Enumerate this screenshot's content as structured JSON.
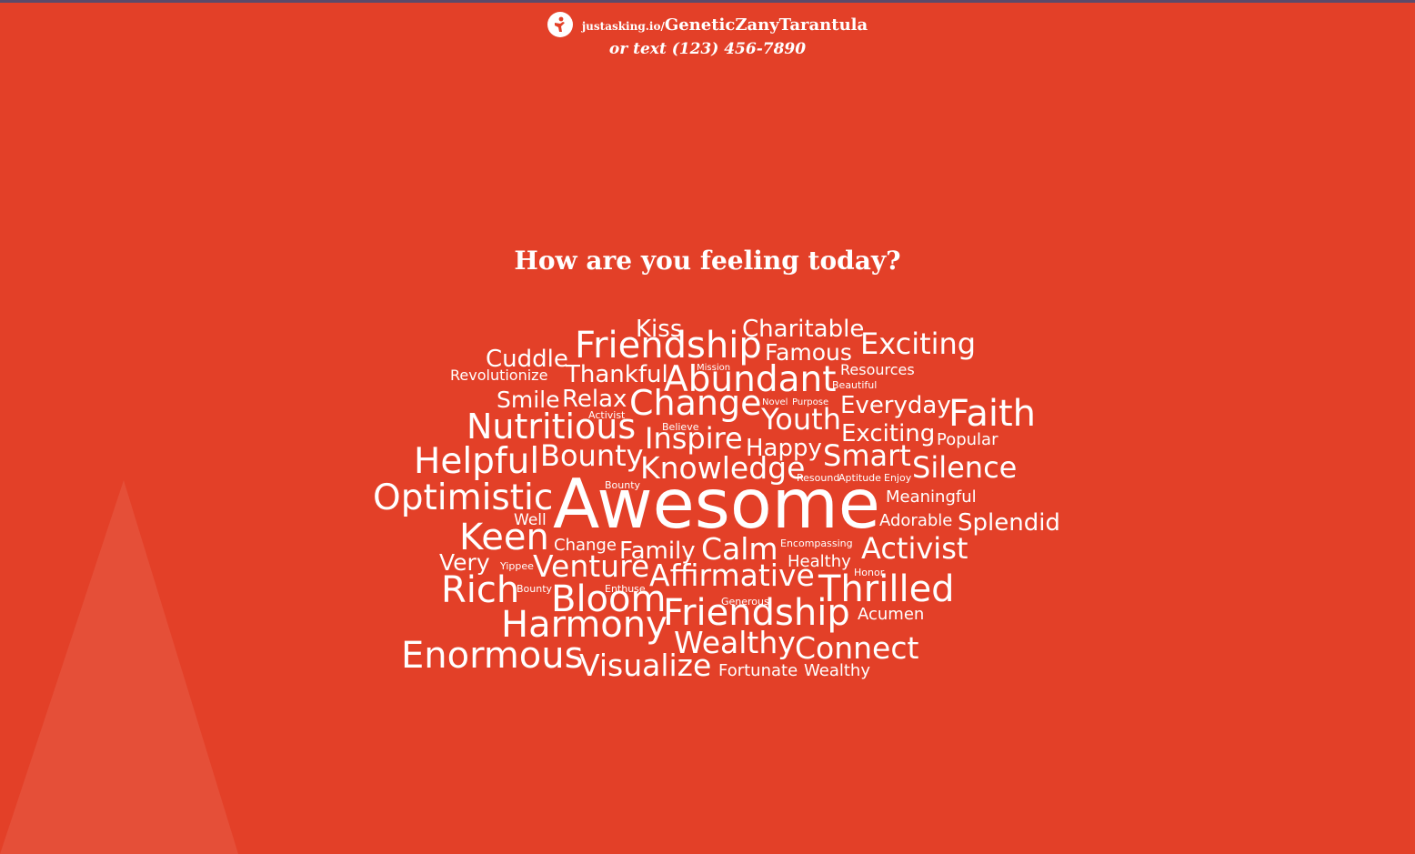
{
  "header": {
    "url_domain": "justasking.io/",
    "url_code": "GeneticZanyTarantula",
    "text_line": "or text (123) 456-7890"
  },
  "question": "How are you feeling today?",
  "colors": {
    "background": "#e34028",
    "text": "#ffffff",
    "top_strip": "#5b4a6a"
  },
  "icons": {
    "logo": "justasking-logo-icon"
  },
  "words": [
    "Kiss",
    "Charitable",
    "Friendship",
    "Famous",
    "Exciting",
    "Cuddle",
    "Revolutionize",
    "Thankful",
    "Mission",
    "Abundant",
    "Resources",
    "Beautiful",
    "Smile",
    "Relax",
    "Change",
    "Novel",
    "Purpose",
    "Everyday",
    "Faith",
    "Activist",
    "Nutritious",
    "Believe",
    "Youth",
    "Inspire",
    "Exciting",
    "Popular",
    "Helpful",
    "Bounty",
    "Happy",
    "Smart",
    "Knowledge",
    "Silence",
    "Resound",
    "Aptitude",
    "Enjoy",
    "Optimistic",
    "Bounty",
    "Awesome",
    "Meaningful",
    "Well",
    "Keen",
    "Adorable",
    "Splendid",
    "Change",
    "Family",
    "Calm",
    "Encompassing",
    "Activist",
    "Very",
    "Yippee",
    "Venture",
    "Healthy",
    "Honor",
    "Affirmative",
    "Rich",
    "Bounty",
    "Enthuse",
    "Bloom",
    "Generous",
    "Thrilled",
    "Harmony",
    "Friendship",
    "Acumen",
    "Enormous",
    "Wealthy",
    "Connect",
    "Visualize",
    "Fortunate",
    "Wealthy"
  ]
}
